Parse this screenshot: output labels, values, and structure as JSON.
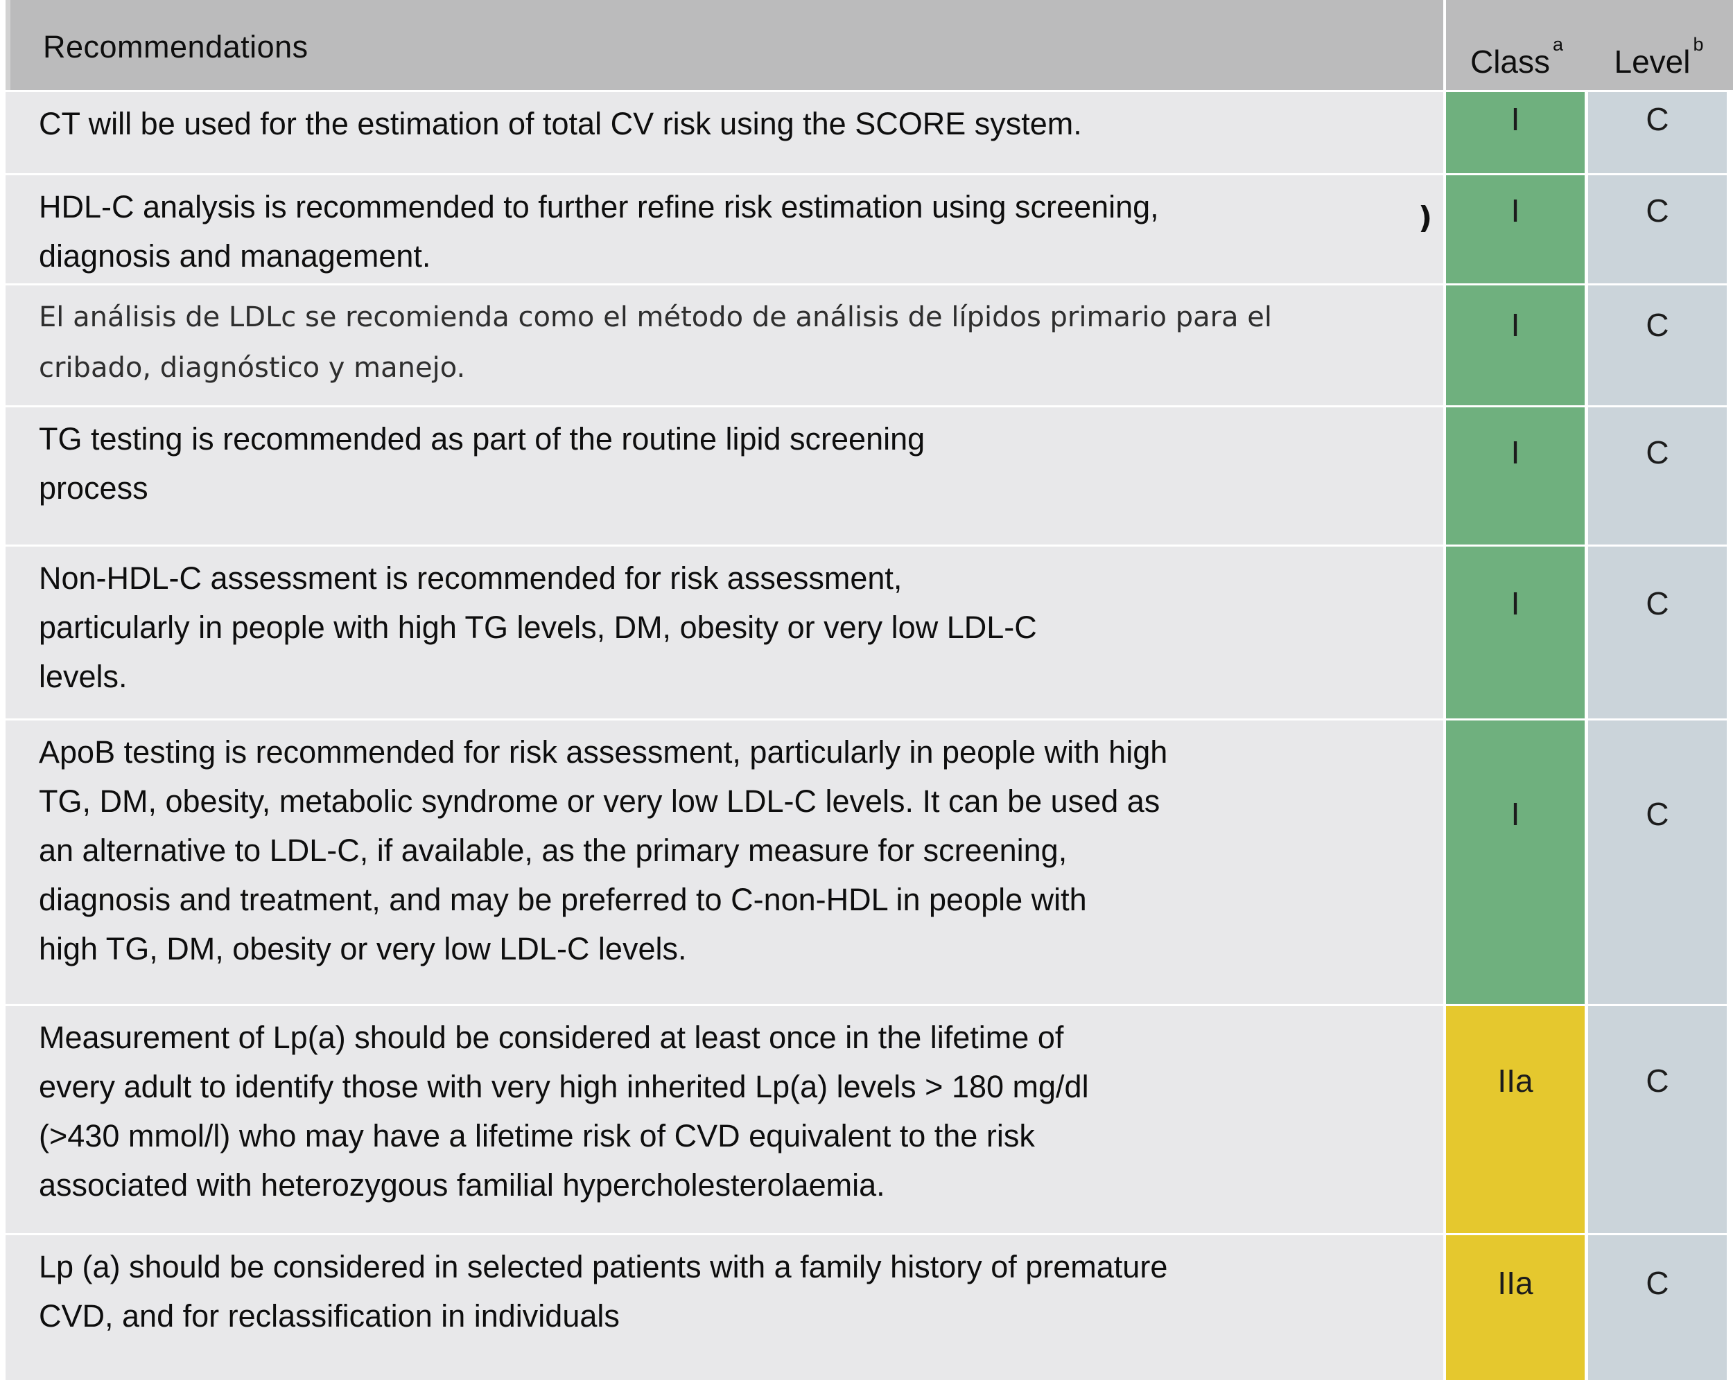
{
  "table": {
    "header": {
      "recommendations_label": "Recommendations",
      "class_label": "Class",
      "class_superscript": "a",
      "level_label": "Level",
      "level_superscript": "b"
    },
    "colors": {
      "header_bg": "#bbbbbc",
      "row_bg": "#e8e8ea",
      "class_green": "#6fb07e",
      "class_yellow": "#e5c82e",
      "level_bg": "#cbd4da"
    },
    "rows": [
      {
        "text": "CT will be used for the estimation of total CV risk using the SCORE system.",
        "class": "I",
        "level": "C",
        "tone": "green",
        "lang": "en"
      },
      {
        "text": "HDL-C analysis is recommended to further refine risk estimation using screening,\ndiagnosis and management.",
        "fragment": ")",
        "class": "I",
        "level": "C",
        "tone": "green",
        "lang": "en"
      },
      {
        "text": "El análisis de LDLc se recomienda como el método de análisis de lípidos primario para el\ncribado, diagnóstico y manejo.",
        "class": "I",
        "level": "C",
        "tone": "green",
        "lang": "es"
      },
      {
        "text": "TG testing is recommended as part of the routine lipid screening\nprocess",
        "class": "I",
        "level": "C",
        "tone": "green",
        "lang": "en"
      },
      {
        "text": "Non-HDL-C assessment is recommended for risk assessment,\nparticularly in people with high TG levels, DM, obesity or very low LDL-C\nlevels.",
        "class": "I",
        "level": "C",
        "tone": "green",
        "lang": "en"
      },
      {
        "text": "ApoB testing is recommended for risk assessment, particularly in people with high\nTG, DM, obesity, metabolic syndrome or very low LDL-C levels. It can be used as\nan alternative to LDL-C, if available, as the primary measure for screening,\ndiagnosis and treatment, and may be preferred to C-non-HDL in people with\nhigh TG, DM, obesity or very low LDL-C levels.",
        "class": "I",
        "level": "C",
        "tone": "green",
        "lang": "en"
      },
      {
        "text": "Measurement of Lp(a) should be considered at least once in the lifetime of\nevery adult to identify those with very high inherited Lp(a) levels > 180 mg/dl\n(>430 mmol/l) who may have a lifetime risk of CVD equivalent to the risk\nassociated with heterozygous familial hypercholesterolaemia.",
        "class": "IIa",
        "level": "C",
        "tone": "yellow",
        "lang": "en"
      },
      {
        "text": "Lp (a) should be considered in selected patients with a family history of premature\nCVD, and for reclassification in individuals",
        "class": "IIa",
        "level": "C",
        "tone": "yellow",
        "lang": "en"
      }
    ]
  }
}
